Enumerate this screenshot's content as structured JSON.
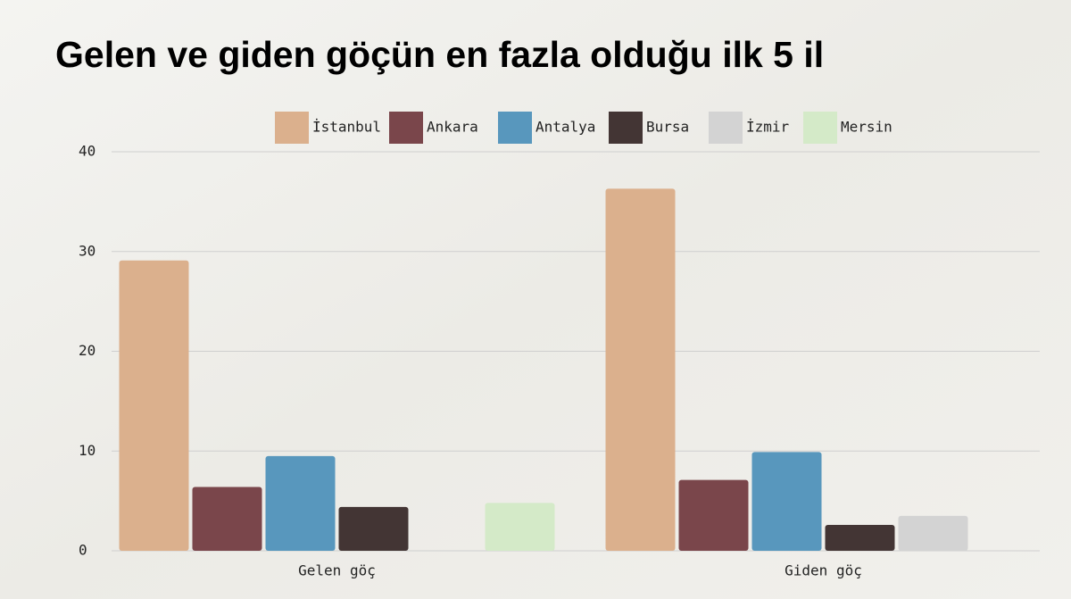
{
  "chart_data": {
    "type": "bar",
    "title": "Gelen ve giden göçün en fazla olduğu ilk 5 il",
    "categories": [
      "Gelen göç",
      "Giden göç"
    ],
    "series": [
      {
        "name": "İstanbul",
        "color": "#dbb08d",
        "values": [
          29.1,
          36.3
        ]
      },
      {
        "name": "Ankara",
        "color": "#7a464b",
        "values": [
          6.4,
          7.1
        ]
      },
      {
        "name": "Antalya",
        "color": "#5897bd",
        "values": [
          9.5,
          9.9
        ]
      },
      {
        "name": "Bursa",
        "color": "#433534",
        "values": [
          4.4,
          2.6
        ]
      },
      {
        "name": "İzmir",
        "color": "#d3d3d3",
        "values": [
          null,
          3.5
        ]
      },
      {
        "name": "Mersin",
        "color": "#d4eac8",
        "values": [
          4.8,
          null
        ]
      }
    ],
    "ylim": [
      0,
      40
    ],
    "yticks": [
      0,
      10,
      20,
      30,
      40
    ],
    "grid": true
  }
}
